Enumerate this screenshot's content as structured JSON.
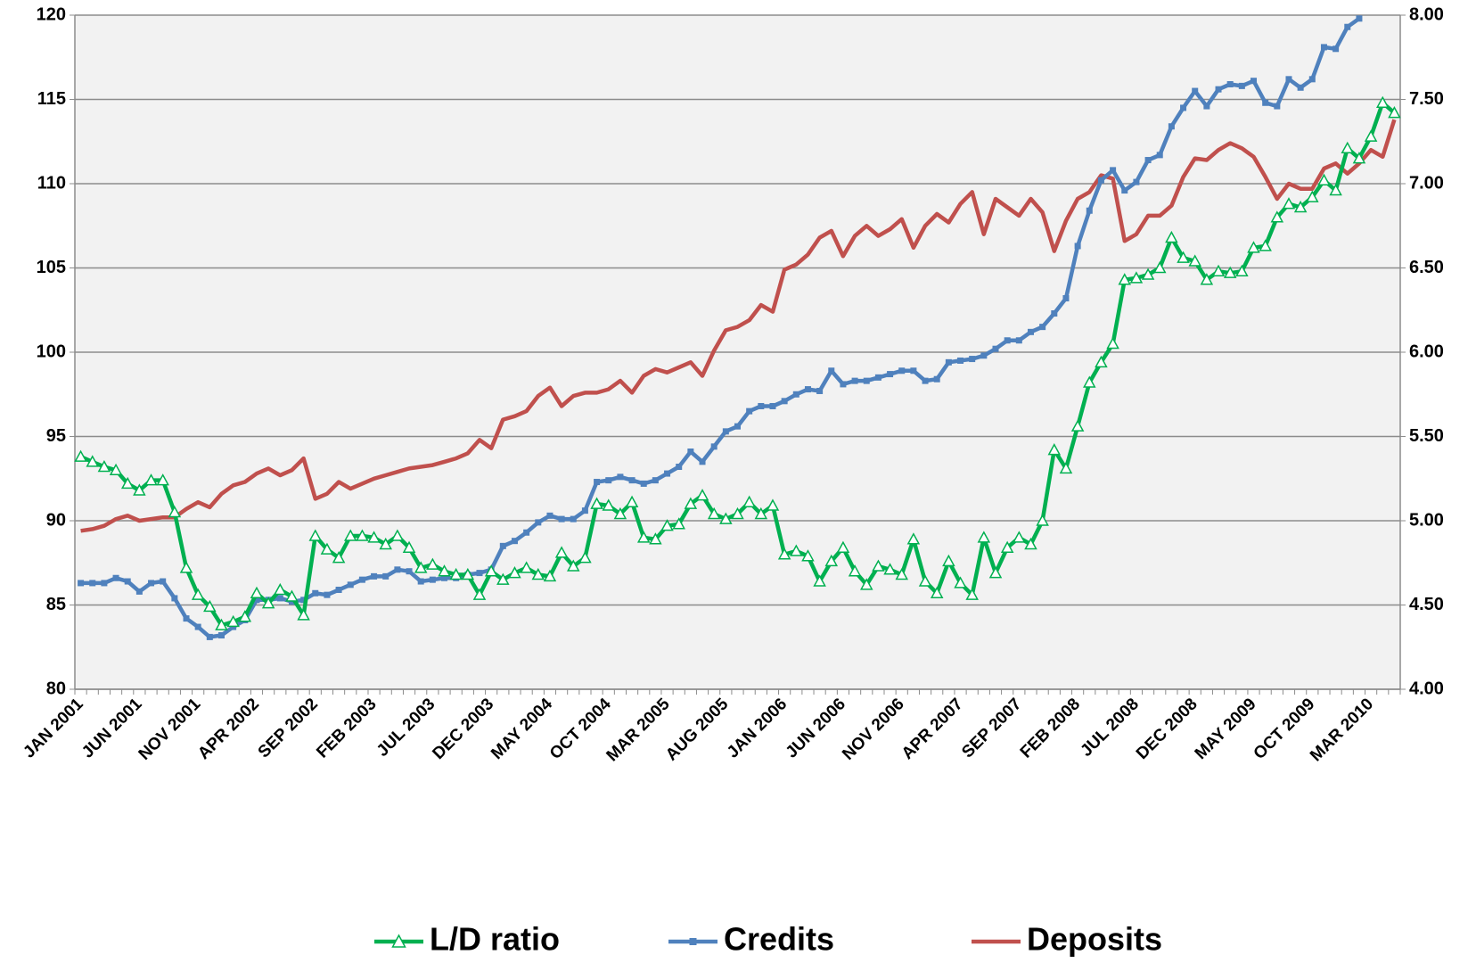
{
  "chart_data": {
    "type": "line",
    "categories": [
      "JAN 2001",
      null,
      null,
      null,
      null,
      "JUN 2001",
      null,
      null,
      null,
      null,
      "NOV 2001",
      null,
      null,
      null,
      null,
      "APR 2002",
      null,
      null,
      null,
      null,
      "SEP 2002",
      null,
      null,
      null,
      null,
      "FEB 2003",
      null,
      null,
      null,
      null,
      "JUL 2003",
      null,
      null,
      null,
      null,
      "DEC 2003",
      null,
      null,
      null,
      null,
      "MAY 2004",
      null,
      null,
      null,
      null,
      "OCT 2004",
      null,
      null,
      null,
      null,
      "MAR 2005",
      null,
      null,
      null,
      null,
      "AUG 2005",
      null,
      null,
      null,
      null,
      "JAN 2006",
      null,
      null,
      null,
      null,
      "JUN 2006",
      null,
      null,
      null,
      null,
      "NOV 2006",
      null,
      null,
      null,
      null,
      "APR 2007",
      null,
      null,
      null,
      null,
      "SEP 2007",
      null,
      null,
      null,
      null,
      "FEB 2008",
      null,
      null,
      null,
      null,
      "JUL 2008",
      null,
      null,
      null,
      null,
      "DEC 2008",
      null,
      null,
      null,
      null,
      "MAY 2009",
      null,
      null,
      null,
      null,
      "OCT 2009",
      null,
      null,
      null,
      null,
      "MAR 2010",
      null,
      null
    ],
    "series": [
      {
        "name": "L/D ratio",
        "color": "#00b050",
        "marker": "triangle",
        "axis": "y",
        "values": [
          93.8,
          93.5,
          93.2,
          93.0,
          92.2,
          91.8,
          92.4,
          92.4,
          90.5,
          87.2,
          85.6,
          84.9,
          83.8,
          84.0,
          84.3,
          85.7,
          85.1,
          85.9,
          85.5,
          84.4,
          89.1,
          88.3,
          87.8,
          89.1,
          89.1,
          89.0,
          88.6,
          89.1,
          88.4,
          87.2,
          87.4,
          87.0,
          86.8,
          86.8,
          85.6,
          87.0,
          86.5,
          86.9,
          87.2,
          86.8,
          86.7,
          88.1,
          87.3,
          87.8,
          91.0,
          90.9,
          90.4,
          91.1,
          89.0,
          88.9,
          89.7,
          89.8,
          91.0,
          91.5,
          90.4,
          90.1,
          90.4,
          91.1,
          90.4,
          90.9,
          88.0,
          88.2,
          87.9,
          86.4,
          87.6,
          88.4,
          87.0,
          86.2,
          87.3,
          87.1,
          86.8,
          88.9,
          86.4,
          85.7,
          87.6,
          86.3,
          85.6,
          89.0,
          86.9,
          88.4,
          89.0,
          88.6,
          90.0,
          94.2,
          93.1,
          95.6,
          98.2,
          99.4,
          100.5,
          104.3,
          104.4,
          104.6,
          105.0,
          106.8,
          105.6,
          105.4,
          104.3,
          104.8,
          104.7,
          104.8,
          106.2,
          106.3,
          108.0,
          108.8,
          108.6,
          109.2,
          110.2,
          109.6,
          112.1,
          111.5,
          112.8,
          114.8,
          114.2
        ]
      },
      {
        "name": "Credits",
        "color": "#4f81bd",
        "marker": "square",
        "axis": "y2",
        "values": [
          4.63,
          4.63,
          4.63,
          4.66,
          4.64,
          4.58,
          4.63,
          4.64,
          4.54,
          4.42,
          4.37,
          4.31,
          4.32,
          4.37,
          4.41,
          4.53,
          4.53,
          4.54,
          4.52,
          4.53,
          4.57,
          4.56,
          4.59,
          4.62,
          4.65,
          4.67,
          4.67,
          4.71,
          4.7,
          4.64,
          4.65,
          4.66,
          4.66,
          4.68,
          4.69,
          4.71,
          4.85,
          4.88,
          4.93,
          4.99,
          5.03,
          5.01,
          5.01,
          5.06,
          5.23,
          5.24,
          5.26,
          5.24,
          5.22,
          5.24,
          5.28,
          5.32,
          5.41,
          5.35,
          5.44,
          5.53,
          5.56,
          5.65,
          5.68,
          5.68,
          5.71,
          5.75,
          5.78,
          5.77,
          5.89,
          5.81,
          5.83,
          5.83,
          5.85,
          5.87,
          5.89,
          5.89,
          5.83,
          5.84,
          5.94,
          5.95,
          5.96,
          5.98,
          6.02,
          6.07,
          6.07,
          6.12,
          6.15,
          6.23,
          6.32,
          6.63,
          6.84,
          7.02,
          7.08,
          6.96,
          7.01,
          7.14,
          7.17,
          7.34,
          7.45,
          7.55,
          7.46,
          7.56,
          7.59,
          7.58,
          7.61,
          7.48,
          7.46,
          7.62,
          7.57,
          7.62,
          7.81,
          7.8,
          7.93,
          7.98,
          null,
          null,
          null
        ]
      },
      {
        "name": "Deposits",
        "color": "#c0504d",
        "marker": "none",
        "axis": "y2",
        "values": [
          4.94,
          4.95,
          4.97,
          5.01,
          5.03,
          5.0,
          5.01,
          5.02,
          5.02,
          5.07,
          5.11,
          5.08,
          5.16,
          5.21,
          5.23,
          5.28,
          5.31,
          5.27,
          5.3,
          5.37,
          5.13,
          5.16,
          5.23,
          5.19,
          5.22,
          5.25,
          5.27,
          5.29,
          5.31,
          5.32,
          5.33,
          5.35,
          5.37,
          5.4,
          5.48,
          5.43,
          5.6,
          5.62,
          5.65,
          5.74,
          5.79,
          5.68,
          5.74,
          5.76,
          5.76,
          5.78,
          5.83,
          5.76,
          5.86,
          5.9,
          5.88,
          5.91,
          5.94,
          5.86,
          6.01,
          6.13,
          6.15,
          6.19,
          6.28,
          6.24,
          6.49,
          6.52,
          6.58,
          6.68,
          6.72,
          6.57,
          6.69,
          6.75,
          6.69,
          6.73,
          6.79,
          6.62,
          6.75,
          6.82,
          6.77,
          6.88,
          6.95,
          6.7,
          6.91,
          6.86,
          6.81,
          6.91,
          6.83,
          6.6,
          6.78,
          6.91,
          6.95,
          7.05,
          7.03,
          6.66,
          6.7,
          6.81,
          6.81,
          6.87,
          7.04,
          7.15,
          7.14,
          7.2,
          7.24,
          7.21,
          7.16,
          7.04,
          6.91,
          7.0,
          6.97,
          6.97,
          7.09,
          7.12,
          7.06,
          7.12,
          7.2,
          7.16,
          7.38
        ]
      }
    ],
    "ylim": [
      80,
      120
    ],
    "yticks": [
      80,
      85,
      90,
      95,
      100,
      105,
      110,
      115,
      120
    ],
    "y2lim": [
      4,
      8
    ],
    "y2ticks": [
      {
        "value": 4,
        "label": "4.00"
      },
      {
        "value": 4.5,
        "label": "4.50"
      },
      {
        "value": 5,
        "label": "5.00"
      },
      {
        "value": 5.5,
        "label": "5.50"
      },
      {
        "value": 6,
        "label": "6.00"
      },
      {
        "value": 6.5,
        "label": "6.50"
      },
      {
        "value": 7,
        "label": "7.00"
      },
      {
        "value": 7.5,
        "label": "7.50"
      },
      {
        "value": 8,
        "label": "8.00"
      }
    ],
    "grid": true,
    "legend": "bottom"
  }
}
